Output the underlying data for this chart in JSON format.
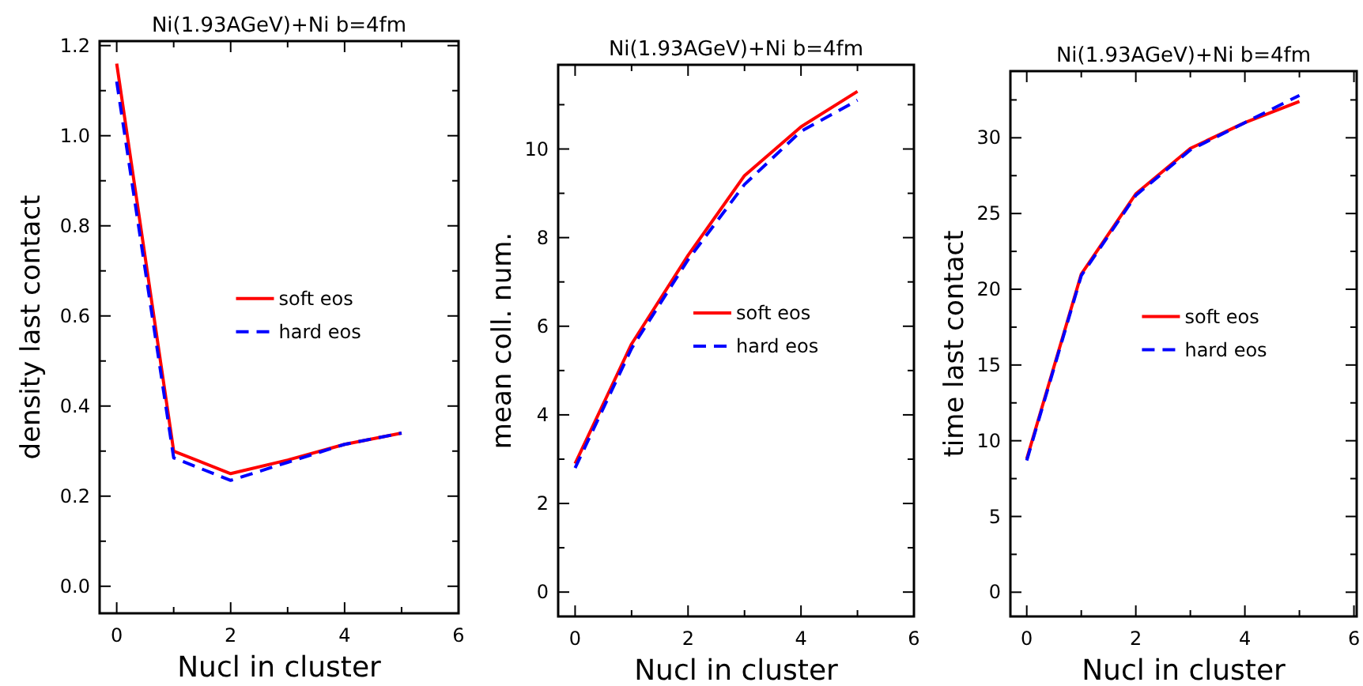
{
  "chart_data": [
    {
      "type": "line",
      "title": "Ni(1.93AGeV)+Ni  b=4fm",
      "xlabel": "Nucl in cluster",
      "ylabel": "density  last  contact",
      "x": [
        0,
        1,
        2,
        3,
        4,
        5
      ],
      "xlim": [
        -0.3,
        6
      ],
      "xticks": [
        0,
        {
          "value": 1,
          "label": null
        },
        2,
        {
          "value": 3,
          "label": null
        },
        4,
        {
          "value": 5,
          "label": null
        },
        6
      ],
      "ylim": [
        -0.06,
        1.21
      ],
      "yticks": [
        {
          "value": 0,
          "label": "0.0"
        },
        {
          "value": 0.1,
          "label": null
        },
        0.2,
        {
          "value": 0.3,
          "label": null
        },
        0.4,
        {
          "value": 0.5,
          "label": null
        },
        0.6,
        {
          "value": 0.7,
          "label": null
        },
        0.8,
        {
          "value": 0.9,
          "label": null
        },
        {
          "value": 1,
          "label": "1.0"
        },
        {
          "value": 1.1,
          "label": null
        },
        1.2
      ],
      "legend": "right",
      "grid": false,
      "marker": "none",
      "series": [
        {
          "name": "soft eos",
          "color": "#ff0000",
          "line_style": "solid",
          "values": [
            1.16,
            0.3,
            0.25,
            0.28,
            0.315,
            0.34
          ]
        },
        {
          "name": "hard eos",
          "color": "#0000ff",
          "line_style": "dashed",
          "values": [
            1.12,
            0.285,
            0.235,
            0.275,
            0.315,
            0.34
          ]
        }
      ]
    },
    {
      "type": "line",
      "title": "Ni(1.93AGeV)+Ni  b=4fm",
      "xlabel": "Nucl in cluster",
      "ylabel": "mean  coll.  num.",
      "x": [
        0,
        1,
        2,
        3,
        4,
        5
      ],
      "xlim": [
        -0.3,
        6
      ],
      "xticks": [
        0,
        {
          "value": 1,
          "label": null
        },
        2,
        {
          "value": 3,
          "label": null
        },
        4,
        {
          "value": 5,
          "label": null
        },
        6
      ],
      "ylim": [
        -0.55,
        11.9
      ],
      "yticks": [
        0,
        {
          "value": 1,
          "label": null
        },
        2,
        {
          "value": 3,
          "label": null
        },
        4,
        {
          "value": 5,
          "label": null
        },
        6,
        {
          "value": 7,
          "label": null
        },
        8,
        {
          "value": 9,
          "label": null
        },
        10,
        {
          "value": 11,
          "label": null
        }
      ],
      "legend": "right",
      "grid": false,
      "marker": "none",
      "series": [
        {
          "name": "soft eos",
          "color": "#ff0000",
          "line_style": "solid",
          "values": [
            2.9,
            5.6,
            7.6,
            9.4,
            10.5,
            11.3
          ]
        },
        {
          "name": "hard eos",
          "color": "#0000ff",
          "line_style": "dashed",
          "values": [
            2.8,
            5.5,
            7.5,
            9.2,
            10.4,
            11.1
          ]
        }
      ]
    },
    {
      "type": "line",
      "title": "Ni(1.93AGeV)+Ni  b=4fm",
      "xlabel": "Nucl in cluster",
      "ylabel": "time  last  contact",
      "x": [
        0,
        1,
        2,
        3,
        4,
        5
      ],
      "xlim": [
        -0.3,
        6.05
      ],
      "xticks": [
        0,
        {
          "value": 1,
          "label": null
        },
        2,
        {
          "value": 3,
          "label": null
        },
        4,
        {
          "value": 5,
          "label": null
        },
        6
      ],
      "ylim": [
        -1.6,
        34.4
      ],
      "yticks": [
        0,
        {
          "value": 2.5,
          "label": null
        },
        5,
        {
          "value": 7.5,
          "label": null
        },
        10,
        {
          "value": 12.5,
          "label": null
        },
        15,
        {
          "value": 17.5,
          "label": null
        },
        20,
        {
          "value": 22.5,
          "label": null
        },
        25,
        {
          "value": 27.5,
          "label": null
        },
        30,
        {
          "value": 32.5,
          "label": null
        }
      ],
      "legend": "right",
      "grid": false,
      "marker": "none",
      "series": [
        {
          "name": "soft eos",
          "color": "#ff0000",
          "line_style": "solid",
          "values": [
            8.8,
            21,
            26.3,
            29.3,
            31,
            32.4
          ]
        },
        {
          "name": "hard eos",
          "color": "#0000ff",
          "line_style": "dashed",
          "values": [
            8.7,
            20.9,
            26.2,
            29.2,
            31,
            32.8
          ]
        }
      ]
    }
  ]
}
